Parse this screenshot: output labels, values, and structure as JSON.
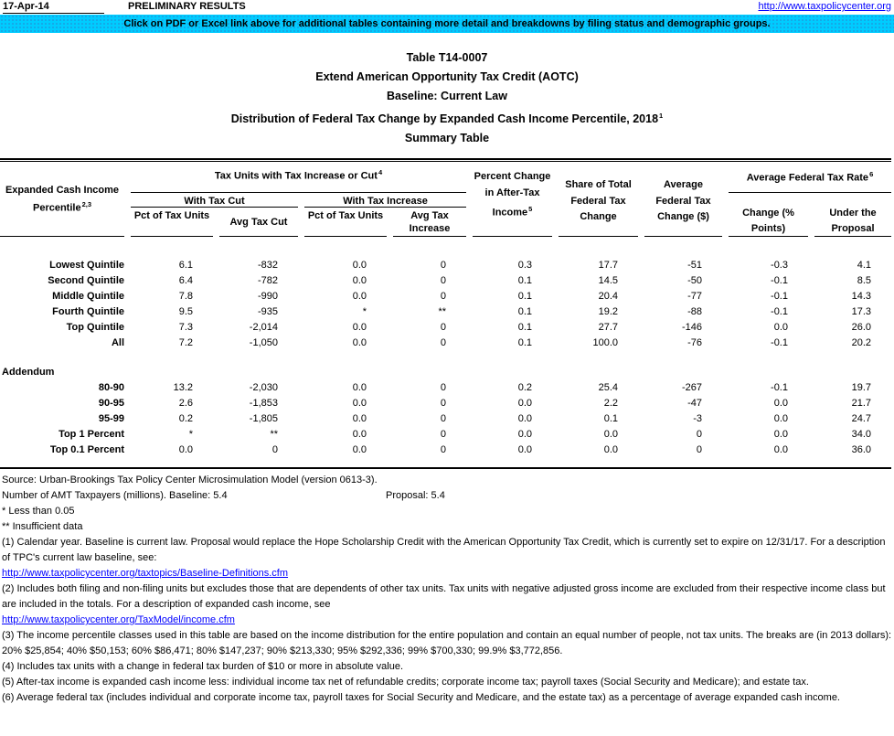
{
  "colors": {
    "banner_bg": "#00ccff",
    "link": "#0000ff"
  },
  "header": {
    "date": "17-Apr-14",
    "preliminary": "PRELIMINARY RESULTS",
    "url": "http://www.taxpolicycenter.org"
  },
  "banner": {
    "text": "Click on PDF or Excel link above for additional tables containing more detail and breakdowns by filing status and demographic groups."
  },
  "title": {
    "line1": "Table T14-0007",
    "line2": "Extend American Opportunity Tax Credit (AOTC)",
    "line3": "Baseline: Current Law",
    "line4": "Distribution of Federal Tax Change by Expanded Cash Income Percentile, 2018",
    "line4_sup": "1",
    "line5": "Summary Table"
  },
  "table": {
    "stub": {
      "line1": "Expanded Cash Income",
      "line2": "Percentile",
      "sup": "2,3"
    },
    "groups": {
      "tax_units": {
        "label": "Tax Units with Tax Increase or Cut",
        "sup": "4"
      },
      "with_tax_cut": "With Tax Cut",
      "with_tax_increase": "With Tax Increase",
      "avg_fed_tax_rate": {
        "label": "Average Federal Tax Rate",
        "sup": "6"
      }
    },
    "columns": {
      "c1": "Pct of Tax Units",
      "c2": "Avg Tax Cut",
      "c3": "Pct of Tax Units",
      "c4": "Avg Tax Increase",
      "c5": {
        "label": "Percent Change in After-Tax Income",
        "sup": "5"
      },
      "c6": "Share of Total Federal Tax Change",
      "c7": "Average Federal Tax Change ($)",
      "c8": "Change (% Points)",
      "c9": "Under the Proposal"
    },
    "addendum_label": "Addendum",
    "rows": [
      {
        "label": "Lowest Quintile",
        "c1": "6.1",
        "c2": "-832",
        "c3": "0.0",
        "c4": "0",
        "c5": "0.3",
        "c6": "17.7",
        "c7": "-51",
        "c8": "-0.3",
        "c9": "4.1"
      },
      {
        "label": "Second Quintile",
        "c1": "6.4",
        "c2": "-782",
        "c3": "0.0",
        "c4": "0",
        "c5": "0.1",
        "c6": "14.5",
        "c7": "-50",
        "c8": "-0.1",
        "c9": "8.5"
      },
      {
        "label": "Middle Quintile",
        "c1": "7.8",
        "c2": "-990",
        "c3": "0.0",
        "c4": "0",
        "c5": "0.1",
        "c6": "20.4",
        "c7": "-77",
        "c8": "-0.1",
        "c9": "14.3"
      },
      {
        "label": "Fourth Quintile",
        "c1": "9.5",
        "c2": "-935",
        "c3": "*",
        "c4": "**",
        "c5": "0.1",
        "c6": "19.2",
        "c7": "-88",
        "c8": "-0.1",
        "c9": "17.3"
      },
      {
        "label": "Top Quintile",
        "c1": "7.3",
        "c2": "-2,014",
        "c3": "0.0",
        "c4": "0",
        "c5": "0.1",
        "c6": "27.7",
        "c7": "-146",
        "c8": "0.0",
        "c9": "26.0"
      },
      {
        "label": "All",
        "c1": "7.2",
        "c2": "-1,050",
        "c3": "0.0",
        "c4": "0",
        "c5": "0.1",
        "c6": "100.0",
        "c7": "-76",
        "c8": "-0.1",
        "c9": "20.2"
      },
      {
        "label": "80-90",
        "c1": "13.2",
        "c2": "-2,030",
        "c3": "0.0",
        "c4": "0",
        "c5": "0.2",
        "c6": "25.4",
        "c7": "-267",
        "c8": "-0.1",
        "c9": "19.7"
      },
      {
        "label": "90-95",
        "c1": "2.6",
        "c2": "-1,853",
        "c3": "0.0",
        "c4": "0",
        "c5": "0.0",
        "c6": "2.2",
        "c7": "-47",
        "c8": "0.0",
        "c9": "21.7"
      },
      {
        "label": "95-99",
        "c1": "0.2",
        "c2": "-1,805",
        "c3": "0.0",
        "c4": "0",
        "c5": "0.0",
        "c6": "0.1",
        "c7": "-3",
        "c8": "0.0",
        "c9": "24.7"
      },
      {
        "label": "Top 1 Percent",
        "c1": "*",
        "c2": "**",
        "c3": "0.0",
        "c4": "0",
        "c5": "0.0",
        "c6": "0.0",
        "c7": "0",
        "c8": "0.0",
        "c9": "34.0"
      },
      {
        "label": "Top 0.1 Percent",
        "c1": "0.0",
        "c2": "0",
        "c3": "0.0",
        "c4": "0",
        "c5": "0.0",
        "c6": "0.0",
        "c7": "0",
        "c8": "0.0",
        "c9": "36.0"
      }
    ]
  },
  "footer": {
    "source": "Source: Urban-Brookings Tax Policy Center Microsimulation Model (version 0613-3).",
    "amt_label": "Number of AMT Taxpayers (millions).  Baseline: 5.4",
    "amt_proposal": "Proposal: 5.4",
    "star_note": "* Less than 0.05",
    "dstar_note": "** Insufficient data",
    "fn1": "(1) Calendar year. Baseline is current law. Proposal would replace the Hope Scholarship Credit with the American Opportunity Tax Credit, which is currently set to expire on 12/31/17. For a description of TPC's current law baseline, see:",
    "link1": "http://www.taxpolicycenter.org/taxtopics/Baseline-Definitions.cfm",
    "fn2": "(2) Includes both filing and non-filing units but excludes those that are dependents of other tax units. Tax units with negative adjusted gross income are excluded from their respective income class but are included in the totals. For a description of expanded cash income, see",
    "link2": "http://www.taxpolicycenter.org/TaxModel/income.cfm",
    "fn3": "(3) The income percentile classes used in this table are based on the income distribution for the entire population and contain an equal number of people, not tax units. The breaks are (in 2013 dollars): 20% $25,854; 40% $50,153; 60% $86,471; 80% $147,237; 90% $213,330; 95% $292,336; 99% $700,330; 99.9% $3,772,856.",
    "fn4": "(4) Includes tax units with a change in federal tax burden of $10 or more in absolute value.",
    "fn5": "(5) After-tax income is expanded cash income less: individual income tax net of refundable credits; corporate income tax; payroll taxes (Social Security and Medicare); and estate tax.",
    "fn6": "(6) Average federal tax (includes individual and corporate income tax, payroll taxes for Social Security and Medicare, and the estate tax) as a percentage of average expanded cash income."
  }
}
